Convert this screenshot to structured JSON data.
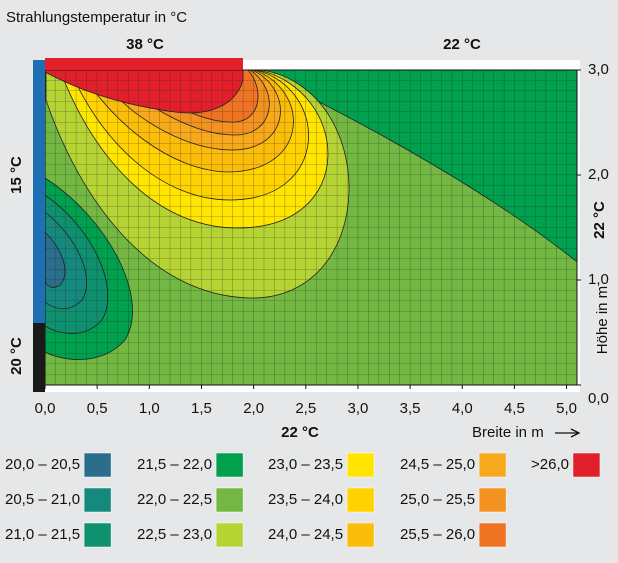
{
  "chart_data": {
    "type": "contour",
    "title": "Strahlungstemperatur in °C",
    "xlabel": "Breite in m",
    "ylabel": "Höhe in m",
    "annotations": [
      "38 °C",
      "22 °C",
      "15 °C",
      "20 °C",
      "22 °C",
      "22 °C"
    ],
    "xlim": [
      0,
      5.1
    ],
    "ylim": [
      0,
      3.0
    ],
    "xticks": [
      {
        "value": 0,
        "label": "0,0"
      },
      {
        "value": 0.5,
        "label": "0,5"
      },
      {
        "value": 1,
        "label": "1,0"
      },
      {
        "value": 1.5,
        "label": "1,5"
      },
      {
        "value": 2,
        "label": "2,0"
      },
      {
        "value": 2.5,
        "label": "2,5"
      },
      {
        "value": 3,
        "label": "3,0"
      },
      {
        "value": 3.5,
        "label": "3,5"
      },
      {
        "value": 4,
        "label": "4,0"
      },
      {
        "value": 4.5,
        "label": "4,5"
      },
      {
        "value": 5,
        "label": "5,0"
      }
    ],
    "yticks": [
      {
        "value": 0,
        "label": "0,0"
      },
      {
        "value": 1,
        "label": "1,0"
      },
      {
        "value": 2,
        "label": "2,0"
      },
      {
        "value": 3,
        "label": "3,0"
      }
    ],
    "grid": true,
    "legend": [
      {
        "label": "20,0 – 20,5",
        "color": "#2a6e8c"
      },
      {
        "label": "20,5 – 21,0",
        "color": "#16897f"
      },
      {
        "label": "21,0 – 21,5",
        "color": "#0f9170"
      },
      {
        "label": "21,5 – 22,0",
        "color": "#00a04e"
      },
      {
        "label": "22,0 – 22,5",
        "color": "#72b843"
      },
      {
        "label": "22,5 – 23,0",
        "color": "#b6d334"
      },
      {
        "label": "23,0 – 23,5",
        "color": "#ffe500"
      },
      {
        "label": "23,5 – 24,0",
        "color": "#ffd200"
      },
      {
        "label": "24,0 – 24,5",
        "color": "#fbbc0a"
      },
      {
        "label": "24,5 – 25,0",
        "color": "#f7a81b"
      },
      {
        "label": "25,0 – 25,5",
        "color": "#f39221"
      },
      {
        "label": "25,5 – 26,0",
        "color": "#ee7424"
      },
      {
        "label": ">26,0",
        "color": "#e2202c"
      }
    ]
  }
}
